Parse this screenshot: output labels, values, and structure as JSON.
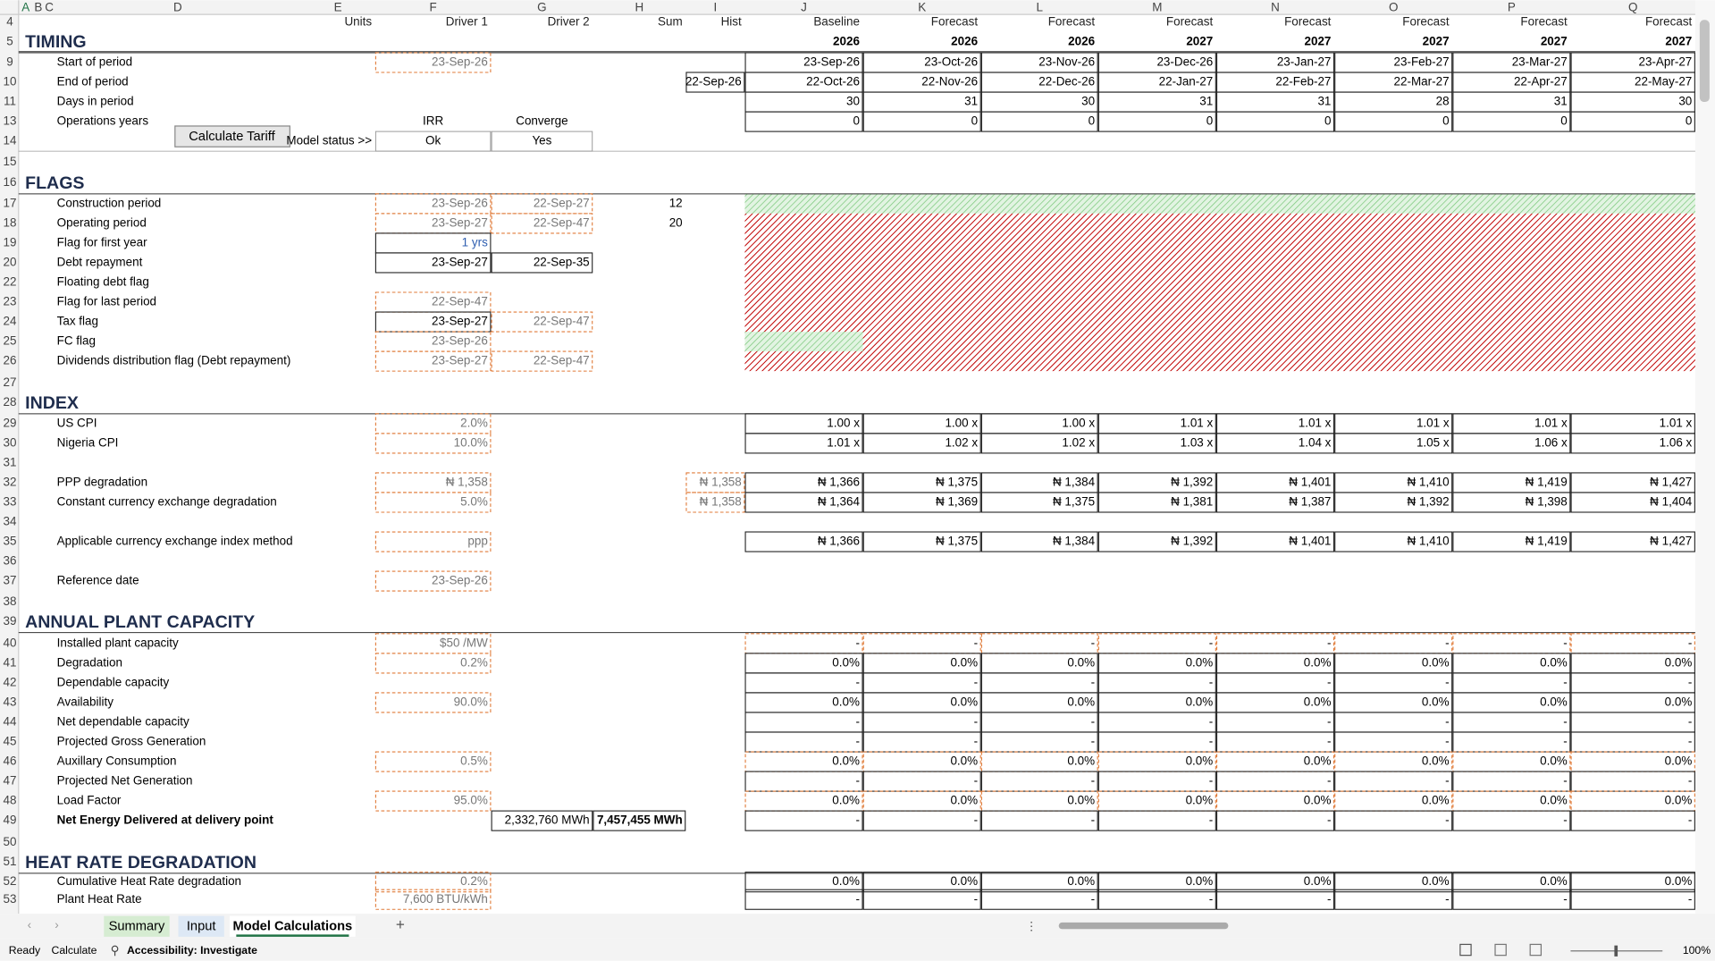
{
  "columns": [
    "A",
    "B",
    "C",
    "D",
    "E",
    "F",
    "G",
    "H",
    "I",
    "J",
    "K",
    "L",
    "M",
    "N",
    "O",
    "P",
    "Q"
  ],
  "button": "Calculate Tariff",
  "rows": [
    {
      "num": "4",
      "cells": {
        "E": "Units",
        "F": "Driver 1",
        "G": "Driver 2",
        "H": "Sum",
        "I": "Hist",
        "J": "Baseline",
        "K": "Forecast",
        "L": "Forecast",
        "M": "Forecast",
        "N": "Forecast",
        "O": "Forecast",
        "P": "Forecast",
        "Q": "Forecast"
      }
    },
    {
      "num": "5",
      "cells": {
        "A": "TIMING",
        "J": "2026",
        "K": "2026",
        "L": "2026",
        "M": "2027",
        "N": "2027",
        "O": "2027",
        "P": "2027",
        "Q": "2027"
      }
    },
    {
      "num": "9",
      "cells": {
        "D": "Start of period",
        "F": "23-Sep-26",
        "J": "23-Sep-26",
        "K": "23-Oct-26",
        "L": "23-Nov-26",
        "M": "23-Dec-26",
        "N": "23-Jan-27",
        "O": "23-Feb-27",
        "P": "23-Mar-27",
        "Q": "23-Apr-27"
      }
    },
    {
      "num": "10",
      "cells": {
        "D": "End of period",
        "I": "22-Sep-26",
        "J": "22-Oct-26",
        "K": "22-Nov-26",
        "L": "22-Dec-26",
        "M": "22-Jan-27",
        "N": "22-Feb-27",
        "O": "22-Mar-27",
        "P": "22-Apr-27",
        "Q": "22-May-27"
      }
    },
    {
      "num": "11",
      "cells": {
        "D": "Days in period",
        "J": "30",
        "K": "31",
        "L": "30",
        "M": "31",
        "N": "31",
        "O": "28",
        "P": "31",
        "Q": "30"
      }
    },
    {
      "num": "13",
      "cells": {
        "D": "Operations years",
        "F": "IRR",
        "G": "Converge",
        "J": "0",
        "K": "0",
        "L": "0",
        "M": "0",
        "N": "0",
        "O": "0",
        "P": "0",
        "Q": "0"
      }
    },
    {
      "num": "14",
      "cells": {
        "E": "Model status >>",
        "F": "Ok",
        "G": "Yes"
      }
    },
    {
      "num": "15",
      "cells": {}
    },
    {
      "num": "16",
      "cells": {
        "A": "FLAGS"
      }
    },
    {
      "num": "17",
      "cells": {
        "D": "Construction period",
        "F": "23-Sep-26",
        "G": "22-Sep-27",
        "H": "12"
      }
    },
    {
      "num": "18",
      "cells": {
        "D": "Operating period",
        "F": "23-Sep-27",
        "G": "22-Sep-47",
        "H": "20"
      }
    },
    {
      "num": "19",
      "cells": {
        "D": "Flag for first year",
        "F": "1 yrs"
      }
    },
    {
      "num": "20",
      "cells": {
        "D": "Debt repayment",
        "F": "23-Sep-27",
        "G": "22-Sep-35"
      }
    },
    {
      "num": "22",
      "cells": {
        "D": "Floating debt flag"
      }
    },
    {
      "num": "23",
      "cells": {
        "D": "Flag for last period",
        "F": "22-Sep-47"
      }
    },
    {
      "num": "24",
      "cells": {
        "D": "Tax flag",
        "F": "23-Sep-27",
        "G": "22-Sep-47"
      }
    },
    {
      "num": "25",
      "cells": {
        "D": "FC flag",
        "F": "23-Sep-26"
      }
    },
    {
      "num": "26",
      "cells": {
        "D": "Dividends distribution flag (Debt repayment)",
        "F": "23-Sep-27",
        "G": "22-Sep-47"
      }
    },
    {
      "num": "27",
      "cells": {}
    },
    {
      "num": "28",
      "cells": {
        "A": "INDEX"
      }
    },
    {
      "num": "29",
      "cells": {
        "D": "US CPI",
        "F": "2.0%",
        "J": "1.00 x",
        "K": "1.00 x",
        "L": "1.00 x",
        "M": "1.01 x",
        "N": "1.01 x",
        "O": "1.01 x",
        "P": "1.01 x",
        "Q": "1.01 x"
      }
    },
    {
      "num": "30",
      "cells": {
        "D": "Nigeria CPI",
        "F": "10.0%",
        "J": "1.01 x",
        "K": "1.02 x",
        "L": "1.02 x",
        "M": "1.03 x",
        "N": "1.04 x",
        "O": "1.05 x",
        "P": "1.06 x",
        "Q": "1.06 x"
      }
    },
    {
      "num": "31",
      "cells": {}
    },
    {
      "num": "32",
      "cells": {
        "D": "PPP degradation",
        "F": "₦ 1,358",
        "I": "₦ 1,358",
        "J": "₦ 1,366",
        "K": "₦ 1,375",
        "L": "₦ 1,384",
        "M": "₦ 1,392",
        "N": "₦ 1,401",
        "O": "₦ 1,410",
        "P": "₦ 1,419",
        "Q": "₦ 1,427"
      }
    },
    {
      "num": "33",
      "cells": {
        "D": "Constant currency exchange degradation",
        "F": "5.0%",
        "I": "₦ 1,358",
        "J": "₦ 1,364",
        "K": "₦ 1,369",
        "L": "₦ 1,375",
        "M": "₦ 1,381",
        "N": "₦ 1,387",
        "O": "₦ 1,392",
        "P": "₦ 1,398",
        "Q": "₦ 1,404"
      }
    },
    {
      "num": "34",
      "cells": {}
    },
    {
      "num": "35",
      "cells": {
        "D": "Applicable currency exchange index method",
        "F": "ppp",
        "J": "₦ 1,366",
        "K": "₦ 1,375",
        "L": "₦ 1,384",
        "M": "₦ 1,392",
        "N": "₦ 1,401",
        "O": "₦ 1,410",
        "P": "₦ 1,419",
        "Q": "₦ 1,427"
      }
    },
    {
      "num": "36",
      "cells": {}
    },
    {
      "num": "37",
      "cells": {
        "D": "Reference date",
        "F": "23-Sep-26"
      }
    },
    {
      "num": "38",
      "cells": {}
    },
    {
      "num": "39",
      "cells": {
        "A": "ANNUAL PLANT CAPACITY"
      }
    },
    {
      "num": "40",
      "cells": {
        "D": "Installed plant capacity",
        "F": "$50 /MW",
        "J": "-",
        "K": "-",
        "L": "-",
        "M": "-",
        "N": "-",
        "O": "-",
        "P": "-",
        "Q": "-"
      }
    },
    {
      "num": "41",
      "cells": {
        "D": "Degradation",
        "F": "0.2%",
        "J": "0.0%",
        "K": "0.0%",
        "L": "0.0%",
        "M": "0.0%",
        "N": "0.0%",
        "O": "0.0%",
        "P": "0.0%",
        "Q": "0.0%"
      }
    },
    {
      "num": "42",
      "cells": {
        "D": "Dependable capacity",
        "J": "-",
        "K": "-",
        "L": "-",
        "M": "-",
        "N": "-",
        "O": "-",
        "P": "-",
        "Q": "-"
      }
    },
    {
      "num": "43",
      "cells": {
        "D": "Availability",
        "F": "90.0%",
        "J": "0.0%",
        "K": "0.0%",
        "L": "0.0%",
        "M": "0.0%",
        "N": "0.0%",
        "O": "0.0%",
        "P": "0.0%",
        "Q": "0.0%"
      }
    },
    {
      "num": "44",
      "cells": {
        "D": "Net dependable capacity",
        "J": "-",
        "K": "-",
        "L": "-",
        "M": "-",
        "N": "-",
        "O": "-",
        "P": "-",
        "Q": "-"
      }
    },
    {
      "num": "45",
      "cells": {
        "D": "Projected Gross Generation",
        "J": "-",
        "K": "-",
        "L": "-",
        "M": "-",
        "N": "-",
        "O": "-",
        "P": "-",
        "Q": "-"
      }
    },
    {
      "num": "46",
      "cells": {
        "D": "Auxillary Consumption",
        "F": "0.5%",
        "J": "0.0%",
        "K": "0.0%",
        "L": "0.0%",
        "M": "0.0%",
        "N": "0.0%",
        "O": "0.0%",
        "P": "0.0%",
        "Q": "0.0%"
      }
    },
    {
      "num": "47",
      "cells": {
        "D": "Projected Net Generation",
        "J": "-",
        "K": "-",
        "L": "-",
        "M": "-",
        "N": "-",
        "O": "-",
        "P": "-",
        "Q": "-"
      }
    },
    {
      "num": "48",
      "cells": {
        "D": "Load Factor",
        "F": "95.0%",
        "J": "0.0%",
        "K": "0.0%",
        "L": "0.0%",
        "M": "0.0%",
        "N": "0.0%",
        "O": "0.0%",
        "P": "0.0%",
        "Q": "0.0%"
      }
    },
    {
      "num": "49",
      "cells": {
        "D": "Net Energy Delivered at delivery point",
        "G": "2,332,760 MWh",
        "H": "7,457,455 MWh",
        "J": "-",
        "K": "-",
        "L": "-",
        "M": "-",
        "N": "-",
        "O": "-",
        "P": "-",
        "Q": "-"
      }
    },
    {
      "num": "50",
      "cells": {}
    },
    {
      "num": "51",
      "cells": {
        "A": "HEAT RATE DEGRADATION"
      }
    },
    {
      "num": "52",
      "cells": {
        "D": "Cumulative Heat Rate degradation",
        "F": "0.2%",
        "J": "0.0%",
        "K": "0.0%",
        "L": "0.0%",
        "M": "0.0%",
        "N": "0.0%",
        "O": "0.0%",
        "P": "0.0%",
        "Q": "0.0%"
      }
    },
    {
      "num": "53",
      "cells": {
        "D": "Plant Heat Rate",
        "F": "7,600 BTU/kWh",
        "J": "-",
        "K": "-",
        "L": "-",
        "M": "-",
        "N": "-",
        "O": "-",
        "P": "-",
        "Q": "-"
      }
    }
  ],
  "sheet_tabs": [
    "Summary",
    "Input",
    "Model Calculations"
  ],
  "status_bar": {
    "mode": "Ready",
    "calc": "Calculate",
    "accessibility": "Accessibility: Investigate",
    "zoom": "100%"
  }
}
